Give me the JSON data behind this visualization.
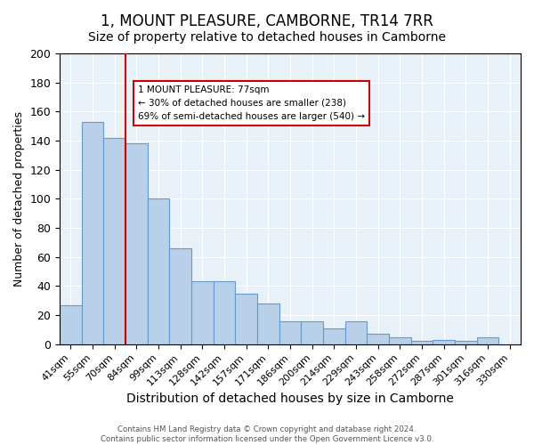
{
  "title": "1, MOUNT PLEASURE, CAMBORNE, TR14 7RR",
  "subtitle": "Size of property relative to detached houses in Camborne",
  "xlabel": "Distribution of detached houses by size in Camborne",
  "ylabel": "Number of detached properties",
  "bar_labels": [
    "41sqm",
    "55sqm",
    "70sqm",
    "84sqm",
    "99sqm",
    "113sqm",
    "128sqm",
    "142sqm",
    "157sqm",
    "171sqm",
    "186sqm",
    "200sqm",
    "214sqm",
    "229sqm",
    "243sqm",
    "258sqm",
    "272sqm",
    "287sqm",
    "301sqm",
    "316sqm",
    "330sqm"
  ],
  "bar_heights": [
    27,
    153,
    142,
    138,
    100,
    66,
    43,
    43,
    35,
    28,
    16,
    16,
    11,
    16,
    7,
    5,
    2,
    3,
    2,
    5,
    0
  ],
  "bar_color": "#b8d0e8",
  "bar_edge_color": "#6699cc",
  "annotation_line_color": "#cc0000",
  "annotation_line_xindex": 2.5,
  "annotation_box_text": "1 MOUNT PLEASURE: 77sqm\n← 30% of detached houses are smaller (238)\n69% of semi-detached houses are larger (540) →",
  "ylim": [
    0,
    200
  ],
  "yticks": [
    0,
    20,
    40,
    60,
    80,
    100,
    120,
    140,
    160,
    180,
    200
  ],
  "footer_line1": "Contains HM Land Registry data © Crown copyright and database right 2024.",
  "footer_line2": "Contains public sector information licensed under the Open Government Licence v3.0.",
  "background_color": "#e8f0f8",
  "title_fontsize": 12,
  "xlabel_fontsize": 10,
  "ylabel_fontsize": 9
}
